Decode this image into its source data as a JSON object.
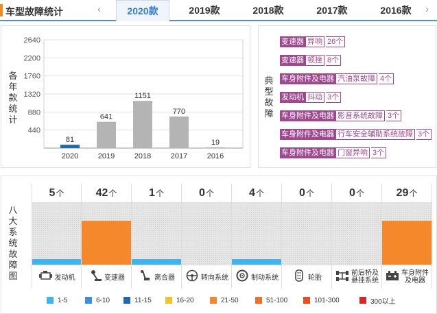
{
  "header": {
    "title": "车型故障统计",
    "prev_icon": "‹",
    "next_icon": "›",
    "tabs": [
      {
        "label": "2020款",
        "active": true
      },
      {
        "label": "2019款",
        "active": false
      },
      {
        "label": "2018款",
        "active": false
      },
      {
        "label": "2017款",
        "active": false
      },
      {
        "label": "2016款",
        "active": false
      }
    ]
  },
  "trend": {
    "label": "各年款统计"
  },
  "chart_data": {
    "type": "bar",
    "categories": [
      "2020",
      "2019",
      "2018",
      "2017",
      "2016"
    ],
    "values": [
      81,
      641,
      1151,
      770,
      19
    ],
    "value_labels": [
      "81",
      "641",
      "1151",
      "770",
      "19"
    ],
    "highlight_index": 0,
    "colors": {
      "highlight": "#1e6ab0",
      "normal": "#b4b4b4"
    },
    "yticks": [
      "2640",
      "2200",
      "1760",
      "1320",
      "880",
      "440"
    ],
    "ylim": [
      0,
      2640
    ],
    "grid": true
  },
  "typical": {
    "label": "典型故障",
    "items": [
      {
        "system": "变速器",
        "issue": "异响",
        "count": "26个"
      },
      {
        "system": "变速器",
        "issue": "顿挫",
        "count": "8个"
      },
      {
        "system": "车身附件及电器",
        "issue": "汽油泵故障",
        "count": "4个"
      },
      {
        "system": "发动机",
        "issue": "抖动",
        "count": "3个"
      },
      {
        "system": "车身附件及电器",
        "issue": "影音系统故障",
        "count": "3个"
      },
      {
        "system": "车身附件及电器",
        "issue": "行车安全辅助系统故障",
        "count": "3个"
      },
      {
        "system": "车身附件及电器",
        "issue": "门窗异响",
        "count": "3个"
      }
    ]
  },
  "systems": {
    "label": "八大系统故障图",
    "unit": "个",
    "items": [
      {
        "name": "发动机",
        "count": "5",
        "level": 0.09,
        "color": "#3db5ee",
        "icon": "engine-icon"
      },
      {
        "name": "变速器",
        "count": "42",
        "level": 0.71,
        "color": "#f5882a",
        "icon": "gear-shift-icon"
      },
      {
        "name": "离合器",
        "count": "1",
        "level": 0.09,
        "color": "#3db5ee",
        "icon": "clutch-pedal-icon"
      },
      {
        "name": "转向系统",
        "count": "0",
        "level": 0,
        "color": "#3db5ee",
        "icon": "steering-wheel-icon"
      },
      {
        "name": "制动系统",
        "count": "4",
        "level": 0.09,
        "color": "#3db5ee",
        "icon": "brake-disc-icon"
      },
      {
        "name": "轮胎",
        "count": "0",
        "level": 0,
        "color": "#3db5ee",
        "icon": "tire-icon"
      },
      {
        "name": "前后桥及悬挂系统",
        "name_lines": [
          "前后桥及",
          "悬挂系统"
        ],
        "count": "0",
        "level": 0,
        "color": "#3db5ee",
        "icon": "axle-icon"
      },
      {
        "name": "车身附件及电器",
        "name_lines": [
          "车身附件",
          "及电器"
        ],
        "count": "29",
        "level": 0.71,
        "color": "#f5882a",
        "icon": "battery-icon"
      }
    ]
  },
  "legend": [
    {
      "label": "1-5",
      "color": "#3db5ee"
    },
    {
      "label": "6-10",
      "color": "#3a8fe0"
    },
    {
      "label": "11-15",
      "color": "#1e6ab0"
    },
    {
      "label": "16-20",
      "color": "#f6c12a"
    },
    {
      "label": "21-50",
      "color": "#f5882a"
    },
    {
      "label": "51-100",
      "color": "#f0702a"
    },
    {
      "label": "101-300",
      "color": "#e8501a"
    },
    {
      "label": "300以上",
      "color": "#d8262a"
    }
  ]
}
